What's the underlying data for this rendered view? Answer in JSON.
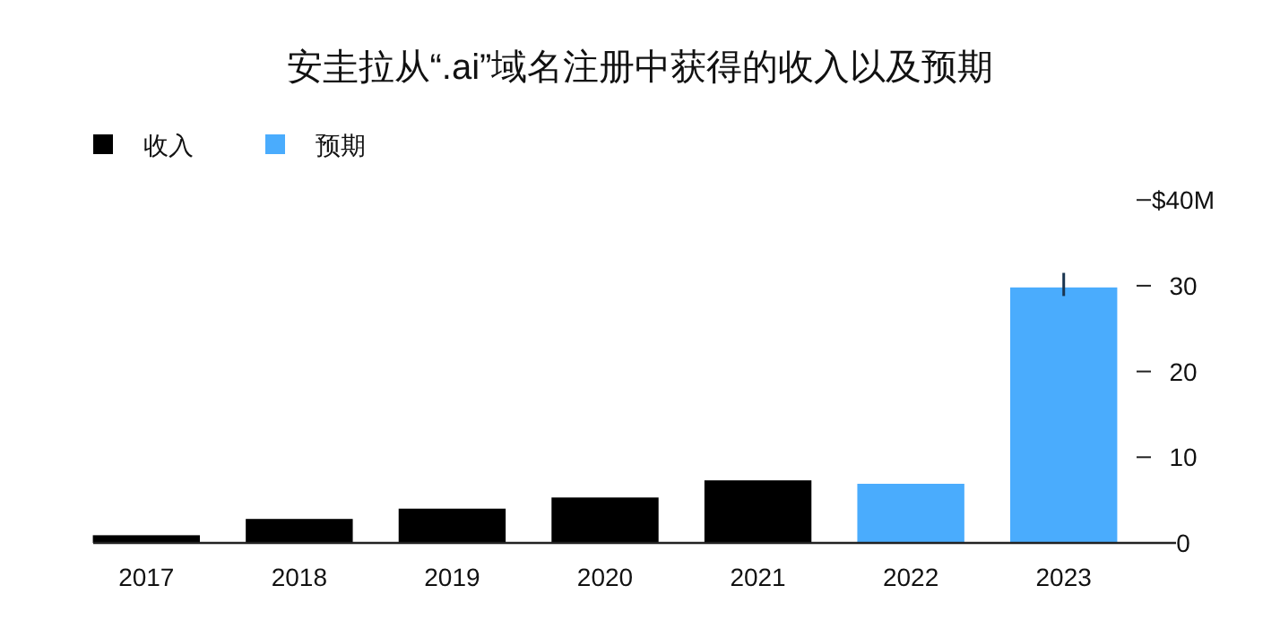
{
  "chart_data": {
    "type": "bar",
    "title": "安圭拉从“.ai”域名注册中获得的收入以及预期",
    "categories": [
      "2017",
      "2018",
      "2019",
      "2020",
      "2021",
      "2022",
      "2023"
    ],
    "series": [
      {
        "name": "收入",
        "color": "#000000",
        "values": [
          0.9,
          2.8,
          4.0,
          5.3,
          7.3,
          null,
          null
        ]
      },
      {
        "name": "预期",
        "color": "#4aacfd",
        "values": [
          null,
          null,
          null,
          null,
          null,
          6.9,
          29.8
        ],
        "errors": [
          null,
          null,
          null,
          null,
          null,
          null,
          [
            28.8,
            31.5
          ]
        ]
      }
    ],
    "ylim": [
      0,
      40
    ],
    "yticks": [
      0,
      10,
      20,
      30,
      {
        "value": 40,
        "label": "$40M"
      }
    ],
    "grid": false,
    "legend": "top left"
  }
}
